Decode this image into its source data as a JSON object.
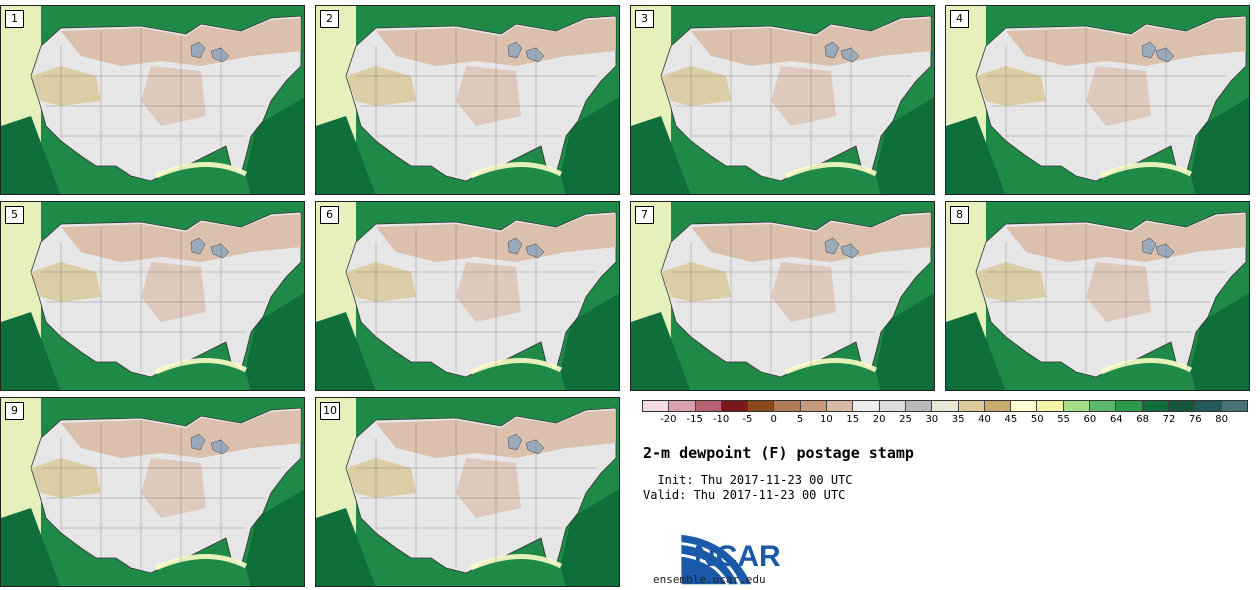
{
  "panels": [
    {
      "label": "1"
    },
    {
      "label": "2"
    },
    {
      "label": "3"
    },
    {
      "label": "4"
    },
    {
      "label": "5"
    },
    {
      "label": "6"
    },
    {
      "label": "7"
    },
    {
      "label": "8"
    },
    {
      "label": "9"
    },
    {
      "label": "10"
    }
  ],
  "colorbar": {
    "colors": [
      "#f3dde3",
      "#d9a0ad",
      "#b5606e",
      "#7a1a1c",
      "#8a4a1c",
      "#b07b56",
      "#c79a7d",
      "#d8b8a6",
      "#ececec",
      "#dddddd",
      "#b9b9b9",
      "#e8e8d4",
      "#dcc99c",
      "#c9ad70",
      "#ffffd2",
      "#f6f6a6",
      "#a6dc8a",
      "#5cb86a",
      "#2c9a4c",
      "#0f6e3a",
      "#14573a",
      "#24595c",
      "#4a7278"
    ],
    "ticks": [
      "-20",
      "-15",
      "-10",
      "-5",
      "0",
      "5",
      "10",
      "15",
      "20",
      "25",
      "30",
      "35",
      "40",
      "45",
      "50",
      "55",
      "60",
      "64",
      "68",
      "72",
      "76",
      "80"
    ]
  },
  "title": "2-m dewpoint (F) postage stamp",
  "init_text": "  Init: Thu 2017-11-23 00 UTC",
  "valid_text": "Valid: Thu 2017-11-23 00 UTC",
  "logo_text": "NCAR",
  "site": "ensemble.ucar.edu",
  "colors": {
    "ocean_green": "#1f8a48",
    "deep_green": "#0f6e3a",
    "land_brown": "#d7b8a2",
    "land_gray": "#e6e6e6",
    "tan": "#d8c796",
    "light_yellow": "#fbfbc8",
    "logo_blue": "#1a5aa8"
  }
}
